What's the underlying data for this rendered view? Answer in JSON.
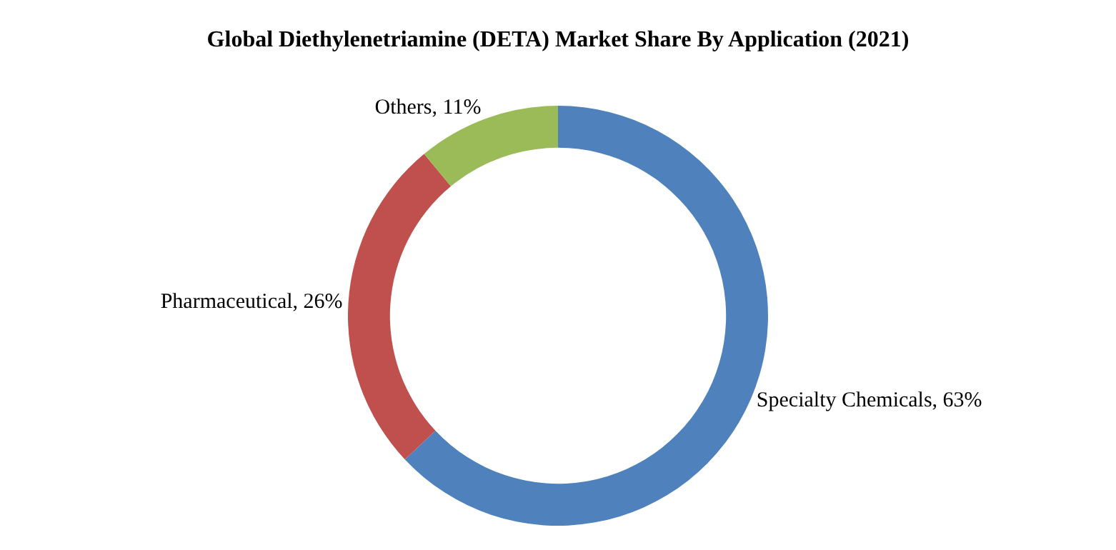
{
  "chart_data": {
    "type": "donut",
    "title": "Global Diethylenetriamine (DETA) Market Share By Application (2021)",
    "categories": [
      "Specialty Chemicals",
      "Pharmaceutical",
      "Others"
    ],
    "values": [
      63,
      26,
      11
    ],
    "value_labels": [
      "63%",
      "26%",
      "11%"
    ],
    "colors": [
      "#4f81bd",
      "#c0504d",
      "#9bbb59"
    ],
    "legend": false
  }
}
